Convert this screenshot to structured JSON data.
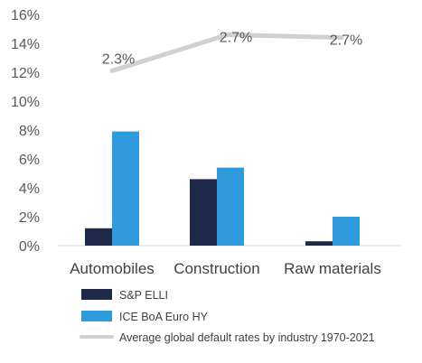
{
  "chart_data": {
    "type": "bar",
    "categories": [
      "Automobiles",
      "Construction",
      "Raw materials"
    ],
    "series": [
      {
        "name": "S&P ELLI",
        "type": "bar",
        "color": "#1f2a4a",
        "values": [
          1.2,
          4.6,
          0.3
        ]
      },
      {
        "name": "ICE BoA Euro HY",
        "type": "bar",
        "color": "#2f9bdc",
        "values": [
          7.9,
          5.4,
          2.0
        ]
      },
      {
        "name": "Average global default rates by industry 1970-2021",
        "type": "line",
        "color": "#d0d0d0",
        "values": [
          2.3,
          2.7,
          2.7
        ],
        "labels": [
          "2.3%",
          "2.7%",
          "2.7%"
        ]
      }
    ],
    "y_ticks": [
      "0%",
      "2%",
      "4%",
      "6%",
      "8%",
      "10%",
      "12%",
      "14%",
      "16%"
    ],
    "ylim": [
      0,
      16
    ],
    "line_display_positions": [
      12.1,
      14.6,
      14.4
    ],
    "legend_position": "bottom",
    "grid": false
  }
}
